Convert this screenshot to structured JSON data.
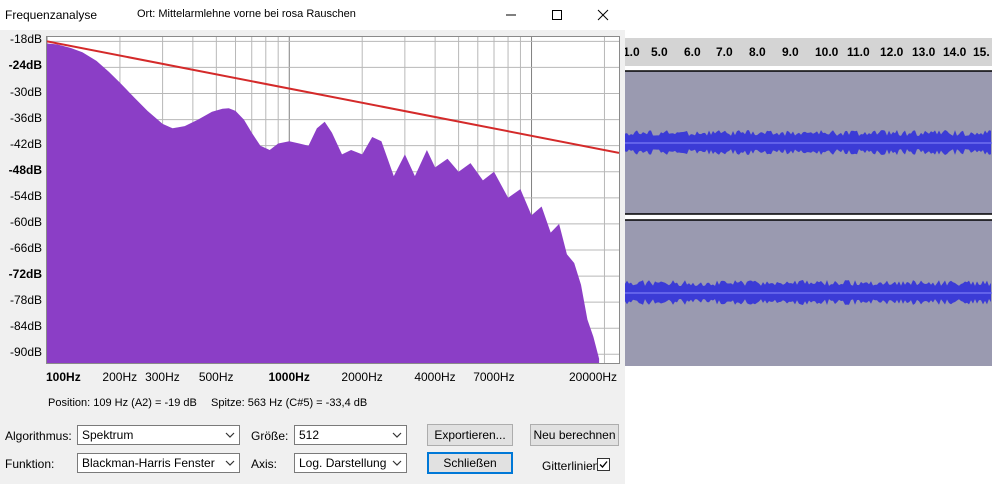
{
  "window": {
    "title": "Frequenzanalyse",
    "subtitle": "Ort: Mittelarmlehne vorne bei rosa Rauschen"
  },
  "plot": {
    "y_labels": [
      "-18dB",
      "-24dB",
      "-30dB",
      "-36dB",
      "-42dB",
      "-48dB",
      "-54dB",
      "-60dB",
      "-66dB",
      "-72dB",
      "-78dB",
      "-84dB",
      "-90dB"
    ],
    "x_labels": [
      "100Hz",
      "200Hz",
      "300Hz",
      "500Hz",
      "1000Hz",
      "2000Hz",
      "4000Hz",
      "7000Hz",
      "20000Hz"
    ],
    "fill_color": "#8b3ec6",
    "line_color": "#d42a2a"
  },
  "status": {
    "position": "Position: 109 Hz (A2) = -19 dB",
    "peak": "Spitze: 563 Hz (C#5) = -33,4 dB"
  },
  "controls": {
    "algorithm_label": "Algorithmus:",
    "algorithm_value": "Spektrum",
    "size_label": "Größe:",
    "size_value": "512",
    "function_label": "Funktion:",
    "function_value": "Blackman-Harris Fenster",
    "axis_label": "Axis:",
    "axis_value": "Log. Darstellung",
    "export_button": "Exportieren...",
    "recalc_button": "Neu berechnen",
    "close_button": "Schließen",
    "grid_label": "Gitterlinien"
  },
  "timeline": {
    "labels": [
      "1.0",
      "5.0",
      "6.0",
      "7.0",
      "8.0",
      "9.0",
      "10.0",
      "11.0",
      "12.0",
      "13.0",
      "14.0",
      "15."
    ]
  },
  "chart_data": {
    "type": "area",
    "x_scale": "log",
    "xlim": [
      100,
      20000
    ],
    "ylim": [
      -92,
      -17
    ],
    "ylabel": "",
    "xlabel": "",
    "x": [
      100,
      110,
      125,
      140,
      160,
      180,
      200,
      230,
      260,
      300,
      330,
      370,
      420,
      480,
      530,
      563,
      600,
      650,
      700,
      760,
      830,
      900,
      1000,
      1100,
      1200,
      1300,
      1400,
      1500,
      1650,
      1800,
      2000,
      2200,
      2400,
      2700,
      3000,
      3300,
      3700,
      4000,
      4500,
      5000,
      5600,
      6300,
      7000,
      8000,
      9000,
      10000,
      11000,
      12000,
      13000,
      14000,
      15000,
      16000,
      17000,
      18000,
      19000
    ],
    "series": [
      {
        "values": [
          -18.5,
          -18.7,
          -19.5,
          -20.5,
          -22.5,
          -25,
          -27.5,
          -31,
          -34,
          -37,
          -38,
          -37.5,
          -36,
          -34.2,
          -33.5,
          -33.4,
          -34,
          -36,
          -39,
          -42,
          -43,
          -41.5,
          -41,
          -41.5,
          -42,
          -38,
          -36.5,
          -39,
          -44,
          -43,
          -44,
          -40,
          -41,
          -49,
          -44,
          -49,
          -43,
          -47,
          -45,
          -48,
          -46,
          -50,
          -48,
          -54,
          -52,
          -58,
          -56,
          -62,
          -60,
          -67,
          -69,
          -74,
          -82,
          -86,
          -91
        ]
      },
      {
        "name": "",
        "values_at_ends": [
          [
            100,
            -18
          ],
          [
            20000,
            -43
          ]
        ]
      }
    ]
  }
}
